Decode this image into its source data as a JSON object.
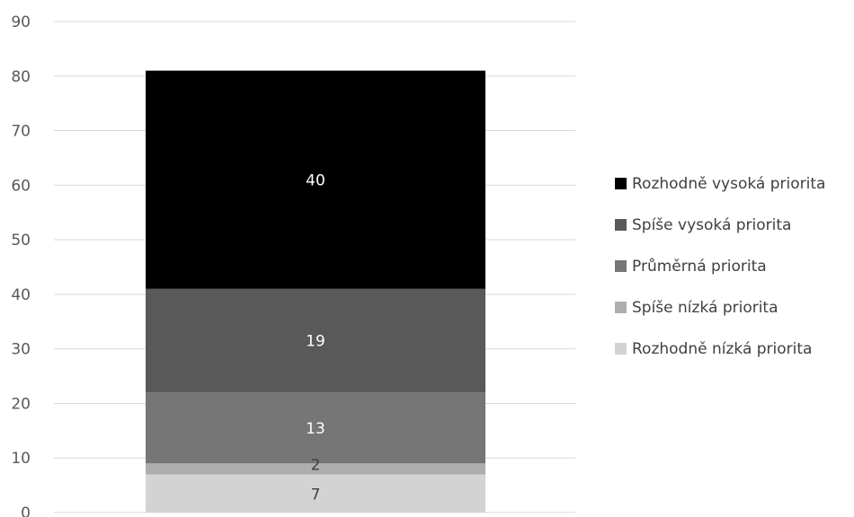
{
  "chart_data": {
    "type": "bar",
    "stacked": true,
    "categories": [
      ""
    ],
    "ylim": [
      0,
      90
    ],
    "yticks": [
      0,
      10,
      20,
      30,
      40,
      50,
      60,
      70,
      80,
      90
    ],
    "grid": true,
    "legend_position": "right",
    "series": [
      {
        "name": "Rozhodně nízká priorita",
        "values": [
          7
        ],
        "color": "#d3d3d3",
        "label_color": "#404040"
      },
      {
        "name": "Spíše nízká priorita",
        "values": [
          2
        ],
        "color": "#adadad",
        "label_color": "#404040"
      },
      {
        "name": "Průměrná priorita",
        "values": [
          13
        ],
        "color": "#767676",
        "label_color": "#ffffff"
      },
      {
        "name": "Spíše vysoká priorita",
        "values": [
          19
        ],
        "color": "#595959",
        "label_color": "#ffffff"
      },
      {
        "name": "Rozhodně vysoká priorita",
        "values": [
          40
        ],
        "color": "#000000",
        "label_color": "#ffffff"
      }
    ]
  }
}
